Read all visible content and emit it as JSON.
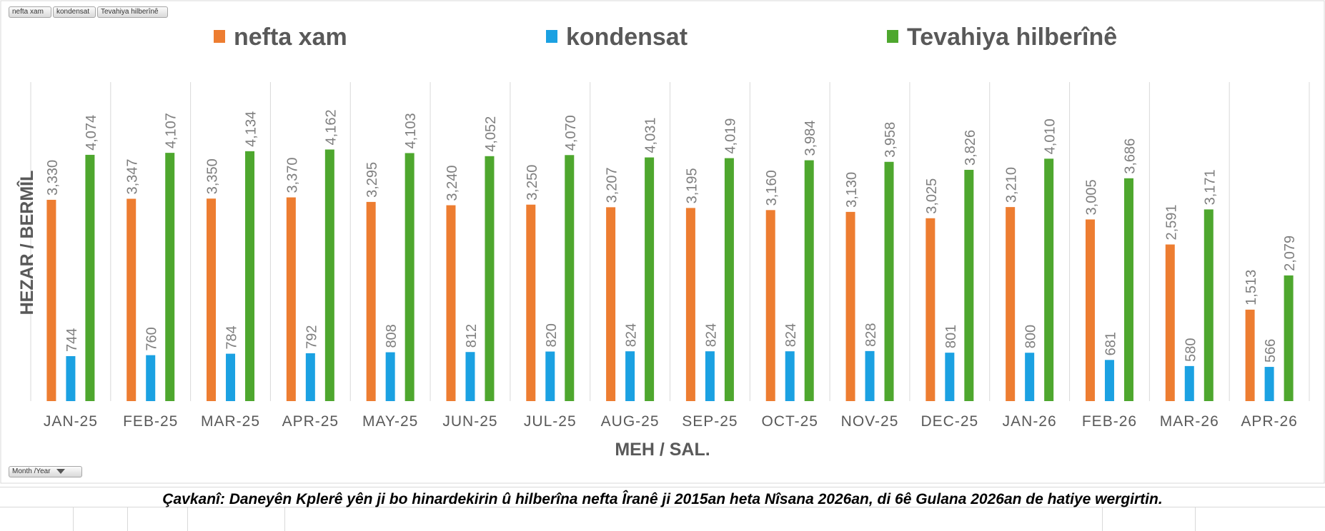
{
  "pivot_buttons": {
    "series_1": "nefta xam",
    "series_2": "kondensat",
    "series_3": "Tevahiya hilberînê",
    "axis_field": "Month /Year"
  },
  "caption": "Çavkanî: Daneyên Kplerê yên ji bo hinardekirin û hilberîna nefta Îranê ji 2015an heta Nîsana 2026an, di 6ê Gulana 2026an de hatiye wergirtin.",
  "chart_data": {
    "type": "bar",
    "title": "",
    "xlabel": "MEH / SAL.",
    "ylabel": "HEZAR /  BERMÎL",
    "ylim": [
      0,
      4500
    ],
    "grid": "vertical category separators",
    "legend_position": "top",
    "categories": [
      "JAN-25",
      "FEB-25",
      "MAR-25",
      "APR-25",
      "MAY-25",
      "JUN-25",
      "JUL-25",
      "AUG-25",
      "SEP-25",
      "OCT-25",
      "NOV-25",
      "DEC-25",
      "JAN-26",
      "FEB-26",
      "MAR-26",
      "APR-26"
    ],
    "series": [
      {
        "name": "nefta xam",
        "color": "#ed7d31",
        "values": [
          3330,
          3347,
          3350,
          3370,
          3295,
          3240,
          3250,
          3207,
          3195,
          3160,
          3130,
          3025,
          3210,
          3005,
          2591,
          1513
        ],
        "labels": [
          "3,330",
          "3,347",
          "3,350",
          "3,370",
          "3,295",
          "3,240",
          "3,250",
          "3,207",
          "3,195",
          "3,160",
          "3,130",
          "3,025",
          "3,210",
          "3,005",
          "2,591",
          "1,513"
        ]
      },
      {
        "name": "kondensat",
        "color": "#1ba1e2",
        "values": [
          744,
          760,
          784,
          792,
          808,
          812,
          820,
          824,
          824,
          824,
          828,
          801,
          800,
          681,
          580,
          566
        ],
        "labels": [
          "744",
          "760",
          "784",
          "792",
          "808",
          "812",
          "820",
          "824",
          "824",
          "824",
          "828",
          "801",
          "800",
          "681",
          "580",
          "566"
        ]
      },
      {
        "name": "Tevahiya hilberînê",
        "color": "#4ea72e",
        "values": [
          4074,
          4107,
          4134,
          4162,
          4103,
          4052,
          4070,
          4031,
          4019,
          3984,
          3958,
          3826,
          4010,
          3686,
          3171,
          2079
        ],
        "labels": [
          "4,074",
          "4,107",
          "4,134",
          "4,162",
          "4,103",
          "4,052",
          "4,070",
          "4,031",
          "4,019",
          "3,984",
          "3,958",
          "3,826",
          "4,010",
          "3,686",
          "3,171",
          "2,079"
        ]
      }
    ]
  }
}
